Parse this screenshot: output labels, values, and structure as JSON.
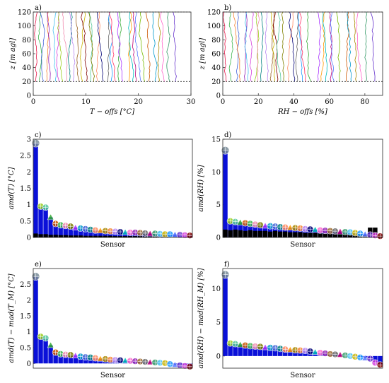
{
  "chart_data": [
    {
      "panel": "a)",
      "type": "line",
      "xlabel": "T − offs [°C]",
      "ylabel": "z [m agl]",
      "xlim": [
        0,
        30
      ],
      "ylim": [
        0,
        120
      ],
      "xticks": [
        0,
        10,
        20,
        30
      ],
      "yticks": [
        0,
        20,
        40,
        60,
        80,
        100,
        120
      ],
      "reference_lines": [
        20,
        120
      ],
      "profile_count": 34,
      "z_range": [
        20,
        120
      ],
      "base_offsets": [
        0.4,
        1.2,
        2.0,
        2.6,
        3.3,
        4.1,
        4.8,
        5.6,
        6.3,
        7.0,
        7.8,
        8.6,
        9.3,
        10.1,
        10.9,
        11.6,
        12.4,
        13.2,
        14.0,
        14.8,
        15.6,
        16.4,
        17.2,
        18.0,
        18.8,
        19.6,
        20.5,
        21.3,
        22.1,
        23.0,
        23.9,
        24.9,
        26.0,
        27.1
      ]
    },
    {
      "panel": "b)",
      "type": "line",
      "xlabel": "RH − offs [%]",
      "ylabel": "z [m agl]",
      "xlim": [
        0,
        90
      ],
      "ylim": [
        0,
        120
      ],
      "xticks": [
        0,
        20,
        40,
        60,
        80
      ],
      "yticks": [
        0,
        20,
        40,
        60,
        80,
        100,
        120
      ],
      "reference_lines": [
        20,
        120
      ],
      "profile_count": 34,
      "z_range": [
        20,
        120
      ],
      "base_offsets": [
        2,
        5,
        8,
        10,
        12,
        14,
        16,
        18,
        20,
        22,
        25,
        27,
        29,
        31,
        33,
        35,
        37,
        40,
        42,
        45,
        47,
        50,
        53,
        55,
        58,
        61,
        63,
        66,
        69,
        72,
        75,
        78,
        81,
        86
      ]
    },
    {
      "panel": "c)",
      "type": "bar",
      "xlabel": "Sensor",
      "ylabel": "amd(T) [°C]",
      "ylim": [
        0,
        3
      ],
      "yticks": [
        0,
        0.5,
        1,
        1.5,
        2,
        2.5,
        3
      ],
      "values": [
        2.88,
        0.95,
        0.92,
        0.62,
        0.42,
        0.38,
        0.36,
        0.34,
        0.3,
        0.28,
        0.26,
        0.24,
        0.22,
        0.21,
        0.2,
        0.19,
        0.18,
        0.17,
        0.16,
        0.15,
        0.15,
        0.14,
        0.13,
        0.12,
        0.12,
        0.11,
        0.1,
        0.1,
        0.09,
        0.08,
        0.07,
        0.06
      ],
      "black_bars": [
        0.12,
        0.1,
        0.1,
        0.08,
        0.08,
        0.07,
        0.07,
        0.06,
        0.06,
        0.06,
        0.05,
        0.05,
        0.05,
        0.05,
        0.05,
        0.05,
        0.04,
        0.04,
        0.04,
        0.04,
        0.04,
        0.04,
        0.03,
        0.03,
        0.03,
        0.03,
        0.03,
        0.03,
        0.02,
        0.02,
        0.02,
        0.02
      ]
    },
    {
      "panel": "d)",
      "type": "bar",
      "xlabel": "Sensor",
      "ylabel": "amd(RH) [%]",
      "ylim": [
        0,
        15
      ],
      "yticks": [
        0,
        5,
        10,
        15
      ],
      "values": [
        13.3,
        2.5,
        2.4,
        2.3,
        2.2,
        2.1,
        2.0,
        1.9,
        1.8,
        1.75,
        1.7,
        1.6,
        1.55,
        1.5,
        1.45,
        1.4,
        1.3,
        1.25,
        1.2,
        1.1,
        1.05,
        1.0,
        0.95,
        0.9,
        0.85,
        0.8,
        0.7,
        0.6,
        0.5,
        0.4,
        0.3,
        0.2
      ],
      "black_bars": [
        1.2,
        1.1,
        1.2,
        1.1,
        1.0,
        1.1,
        1.0,
        1.0,
        1.0,
        0.9,
        1.0,
        0.9,
        0.9,
        0.8,
        0.8,
        0.8,
        0.7,
        0.7,
        0.7,
        0.6,
        0.6,
        0.6,
        0.5,
        0.5,
        0.5,
        0.5,
        0.4,
        0.4,
        0.3,
        1.5,
        1.5,
        0.3
      ]
    },
    {
      "panel": "e)",
      "type": "bar",
      "xlabel": "Sensor",
      "ylabel": "amd(T) − mad(T_M) [°C]",
      "ylim": [
        -0.15,
        3.0
      ],
      "yticks": [
        0,
        0.5,
        1,
        1.5,
        2,
        2.5
      ],
      "values": [
        2.75,
        0.85,
        0.8,
        0.58,
        0.35,
        0.3,
        0.28,
        0.27,
        0.25,
        0.22,
        0.2,
        0.19,
        0.17,
        0.15,
        0.14,
        0.12,
        0.11,
        0.1,
        0.09,
        0.08,
        0.07,
        0.06,
        0.05,
        0.04,
        0.03,
        0.02,
        0.01,
        -0.02,
        -0.04,
        -0.06,
        -0.08,
        -0.1
      ]
    },
    {
      "panel": "f)",
      "type": "bar",
      "xlabel": "Sensor",
      "ylabel": "amd(RH) − mad(RH_M) [%]",
      "ylim": [
        -1.8,
        13
      ],
      "yticks": [
        0,
        5,
        10
      ],
      "values": [
        12.1,
        1.9,
        1.8,
        1.7,
        1.6,
        1.5,
        1.45,
        1.4,
        1.3,
        1.25,
        1.2,
        1.1,
        1.0,
        0.95,
        0.9,
        0.85,
        0.8,
        0.7,
        0.6,
        0.5,
        0.4,
        0.3,
        0.25,
        0.2,
        0.1,
        0.0,
        -0.1,
        -0.2,
        -0.3,
        -0.4,
        -1.0,
        -1.3
      ]
    }
  ],
  "colors": {
    "bar_fill": "#0a10d8",
    "black_bar": "#000000",
    "frame": "#262626",
    "ref_line": "#333333"
  }
}
